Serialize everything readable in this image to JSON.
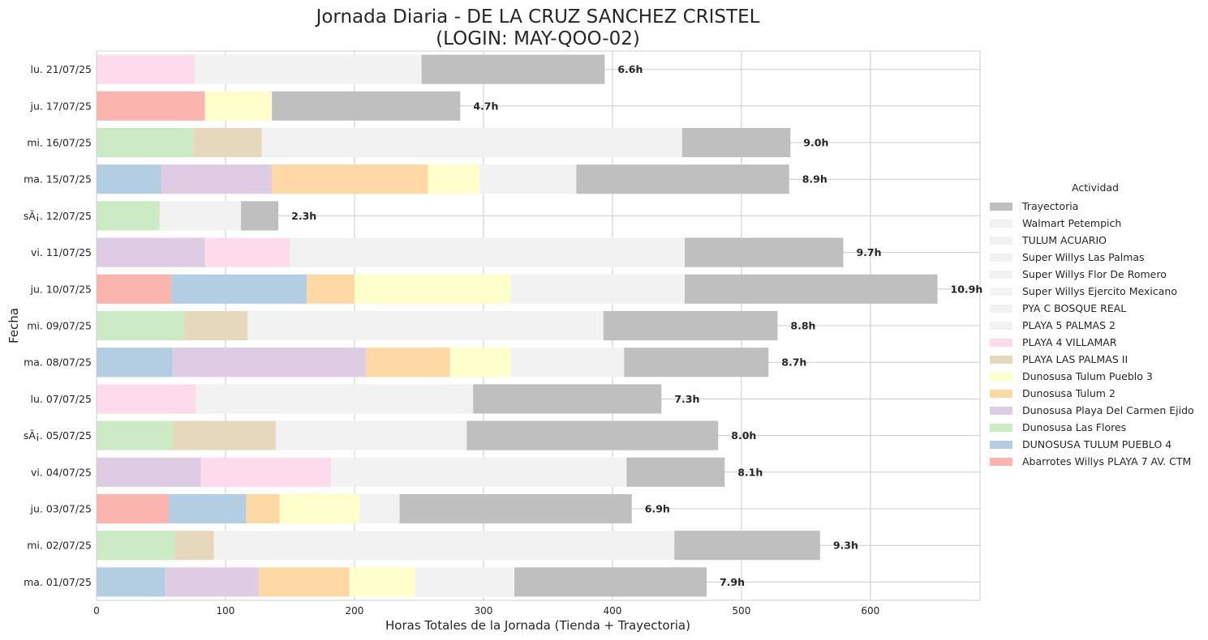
{
  "chart_data": {
    "type": "bar",
    "orientation": "horizontal",
    "stacked": true,
    "title": "Jornada Diaria - DE LA CRUZ SANCHEZ CRISTEL",
    "subtitle": "(LOGIN: MAY-QOO-02)",
    "xlabel": "Horas Totales de la Jornada (Tienda + Trayectoria)",
    "ylabel": "Fecha",
    "xlim": [
      0,
      685
    ],
    "xticks": [
      "0",
      "100",
      "200",
      "300",
      "400",
      "500",
      "600"
    ],
    "grid": true,
    "legend_title": "Actividad",
    "legend_position": "right",
    "categories": [
      "lu. 21/07/25",
      "ju. 17/07/25",
      "mi. 16/07/25",
      "ma. 15/07/25",
      "sÃ¡. 12/07/25",
      "vi. 11/07/25",
      "ju. 10/07/25",
      "mi. 09/07/25",
      "ma. 08/07/25",
      "lu. 07/07/25",
      "sÃ¡. 05/07/25",
      "vi. 04/07/25",
      "ju. 03/07/25",
      "mi. 02/07/25",
      "ma. 01/07/25"
    ],
    "totals_labels": [
      "6.6h",
      "4.7h",
      "9.0h",
      "8.9h",
      "2.3h",
      "9.7h",
      "10.9h",
      "8.8h",
      "8.7h",
      "7.3h",
      "8.0h",
      "8.1h",
      "6.9h",
      "9.3h",
      "7.9h"
    ],
    "legend": [
      {
        "name": "Trayectoria",
        "color": "#bfbfbf"
      },
      {
        "name": "Walmart Petempich",
        "color": "#f2f2f2"
      },
      {
        "name": "TULUM ACUARIO",
        "color": "#f2f2f2"
      },
      {
        "name": "Super Willys Las Palmas",
        "color": "#f2f2f2"
      },
      {
        "name": "Super Willys Flor De Romero",
        "color": "#f2f2f2"
      },
      {
        "name": "Super Willys Ejercito Mexicano",
        "color": "#f2f2f2"
      },
      {
        "name": "PYA C BOSQUE REAL",
        "color": "#f2f2f2"
      },
      {
        "name": "PLAYA 5 PALMAS 2",
        "color": "#f2f2f2"
      },
      {
        "name": "PLAYA 4 VILLAMAR",
        "color": "#fddaec"
      },
      {
        "name": "PLAYA  LAS PALMAS II",
        "color": "#e5d8bd"
      },
      {
        "name": "Dunosusa Tulum Pueblo 3",
        "color": "#ffffcc"
      },
      {
        "name": "Dunosusa Tulum 2",
        "color": "#fed9a6"
      },
      {
        "name": "Dunosusa Playa Del Carmen Ejido",
        "color": "#decbe4"
      },
      {
        "name": "Dunosusa Las Flores",
        "color": "#ccebc5"
      },
      {
        "name": "DUNOSUSA TULUM PUEBLO 4",
        "color": "#b3cde3"
      },
      {
        "name": "Abarrotes Willys PLAYA 7 AV. CTM",
        "color": "#fbb4ae"
      }
    ],
    "rows": [
      {
        "segments": [
          {
            "name": "PLAYA 4 VILLAMAR",
            "value": 76
          },
          {
            "name": "Super Willys Las Palmas",
            "value": 176
          },
          {
            "name": "Trayectoria",
            "value": 142
          }
        ]
      },
      {
        "segments": [
          {
            "name": "Abarrotes Willys PLAYA 7 AV. CTM",
            "value": 84
          },
          {
            "name": "Dunosusa Tulum Pueblo 3",
            "value": 52
          },
          {
            "name": "Trayectoria",
            "value": 146
          }
        ]
      },
      {
        "segments": [
          {
            "name": "Dunosusa Las Flores",
            "value": 75
          },
          {
            "name": "PLAYA  LAS PALMAS II",
            "value": 53
          },
          {
            "name": "Super Willys Ejercito Mexicano",
            "value": 326
          },
          {
            "name": "Trayectoria",
            "value": 84
          }
        ]
      },
      {
        "segments": [
          {
            "name": "DUNOSUSA TULUM PUEBLO 4",
            "value": 50
          },
          {
            "name": "Dunosusa Playa Del Carmen Ejido",
            "value": 86
          },
          {
            "name": "Dunosusa Tulum 2",
            "value": 121
          },
          {
            "name": "Dunosusa Tulum Pueblo 3",
            "value": 40
          },
          {
            "name": "TULUM ACUARIO",
            "value": 75
          },
          {
            "name": "Trayectoria",
            "value": 165
          }
        ]
      },
      {
        "segments": [
          {
            "name": "Dunosusa Las Flores",
            "value": 49
          },
          {
            "name": "PLAYA 5 PALMAS 2",
            "value": 63
          },
          {
            "name": "Trayectoria",
            "value": 29
          }
        ]
      },
      {
        "segments": [
          {
            "name": "Dunosusa Playa Del Carmen Ejido",
            "value": 84
          },
          {
            "name": "PLAYA 4 VILLAMAR",
            "value": 66
          },
          {
            "name": "Super Willys Flor De Romero",
            "value": 306
          },
          {
            "name": "Trayectoria",
            "value": 123
          }
        ]
      },
      {
        "segments": [
          {
            "name": "Abarrotes Willys PLAYA 7 AV. CTM",
            "value": 58
          },
          {
            "name": "DUNOSUSA TULUM PUEBLO 4",
            "value": 105
          },
          {
            "name": "Dunosusa Tulum 2",
            "value": 37
          },
          {
            "name": "Dunosusa Tulum Pueblo 3",
            "value": 121
          },
          {
            "name": "Walmart Petempich",
            "value": 135
          },
          {
            "name": "Trayectoria",
            "value": 196
          }
        ]
      },
      {
        "segments": [
          {
            "name": "Dunosusa Las Flores",
            "value": 68
          },
          {
            "name": "PLAYA  LAS PALMAS II",
            "value": 49
          },
          {
            "name": "PYA C BOSQUE REAL",
            "value": 276
          },
          {
            "name": "Trayectoria",
            "value": 135
          }
        ]
      },
      {
        "segments": [
          {
            "name": "DUNOSUSA TULUM PUEBLO 4",
            "value": 59
          },
          {
            "name": "Dunosusa Playa Del Carmen Ejido",
            "value": 150
          },
          {
            "name": "Dunosusa Tulum 2",
            "value": 65
          },
          {
            "name": "Dunosusa Tulum Pueblo 3",
            "value": 47
          },
          {
            "name": "TULUM ACUARIO",
            "value": 88
          },
          {
            "name": "Trayectoria",
            "value": 112
          }
        ]
      },
      {
        "segments": [
          {
            "name": "PLAYA 4 VILLAMAR",
            "value": 77
          },
          {
            "name": "Super Willys Las Palmas",
            "value": 215
          },
          {
            "name": "Trayectoria",
            "value": 146
          }
        ]
      },
      {
        "segments": [
          {
            "name": "Dunosusa Las Flores",
            "value": 59
          },
          {
            "name": "PLAYA  LAS PALMAS II",
            "value": 80
          },
          {
            "name": "PLAYA 5 PALMAS 2",
            "value": 148
          },
          {
            "name": "Trayectoria",
            "value": 195
          }
        ]
      },
      {
        "segments": [
          {
            "name": "Dunosusa Playa Del Carmen Ejido",
            "value": 81
          },
          {
            "name": "PLAYA 4 VILLAMAR",
            "value": 101
          },
          {
            "name": "Super Willys Flor De Romero",
            "value": 229
          },
          {
            "name": "Trayectoria",
            "value": 76
          }
        ]
      },
      {
        "segments": [
          {
            "name": "Abarrotes Willys PLAYA 7 AV. CTM",
            "value": 56
          },
          {
            "name": "DUNOSUSA TULUM PUEBLO 4",
            "value": 60
          },
          {
            "name": "Dunosusa Tulum 2",
            "value": 26
          },
          {
            "name": "Dunosusa Tulum Pueblo 3",
            "value": 62
          },
          {
            "name": "Walmart Petempich",
            "value": 31
          },
          {
            "name": "Trayectoria",
            "value": 180
          }
        ]
      },
      {
        "segments": [
          {
            "name": "Dunosusa Las Flores",
            "value": 61
          },
          {
            "name": "PLAYA  LAS PALMAS II",
            "value": 30
          },
          {
            "name": "PYA C BOSQUE REAL",
            "value": 357
          },
          {
            "name": "Trayectoria",
            "value": 113
          }
        ]
      },
      {
        "segments": [
          {
            "name": "DUNOSUSA TULUM PUEBLO 4",
            "value": 53
          },
          {
            "name": "Dunosusa Playa Del Carmen Ejido",
            "value": 73
          },
          {
            "name": "Dunosusa Tulum 2",
            "value": 70
          },
          {
            "name": "Dunosusa Tulum Pueblo 3",
            "value": 51
          },
          {
            "name": "TULUM ACUARIO",
            "value": 77
          },
          {
            "name": "Trayectoria",
            "value": 149
          }
        ]
      }
    ]
  }
}
